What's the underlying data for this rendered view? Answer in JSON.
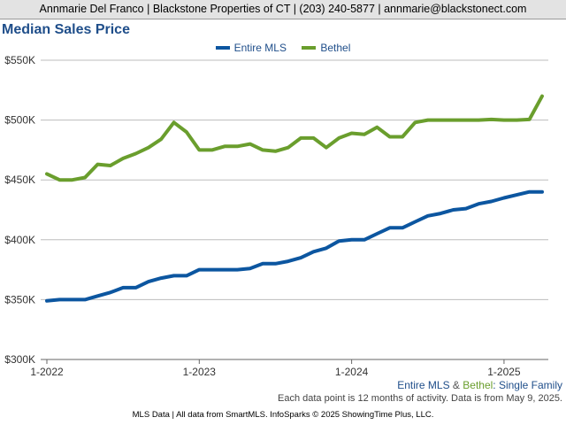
{
  "header": {
    "contact": "Annmarie Del Franco | Blackstone Properties of CT | (203) 240-5877 | annmarie@blackstonect.com"
  },
  "chart_data": {
    "type": "line",
    "title": "Median Sales Price",
    "xlabel": "",
    "ylabel": "",
    "ylim": [
      300000,
      550000
    ],
    "y_ticks": [
      300000,
      350000,
      400000,
      450000,
      500000,
      550000
    ],
    "y_tick_labels": [
      "$300K",
      "$350K",
      "$400K",
      "$450K",
      "$500K",
      "$550K"
    ],
    "x_ticks": [
      "2022-01",
      "2023-01",
      "2024-01",
      "2025-01"
    ],
    "x_tick_labels": [
      "1-2022",
      "1-2023",
      "1-2024",
      "1-2025"
    ],
    "x": [
      "2022-01",
      "2022-02",
      "2022-03",
      "2022-04",
      "2022-05",
      "2022-06",
      "2022-07",
      "2022-08",
      "2022-09",
      "2022-10",
      "2022-11",
      "2022-12",
      "2023-01",
      "2023-02",
      "2023-03",
      "2023-04",
      "2023-05",
      "2023-06",
      "2023-07",
      "2023-08",
      "2023-09",
      "2023-10",
      "2023-11",
      "2023-12",
      "2024-01",
      "2024-02",
      "2024-03",
      "2024-04",
      "2024-05",
      "2024-06",
      "2024-07",
      "2024-08",
      "2024-09",
      "2024-10",
      "2024-11",
      "2024-12",
      "2025-01",
      "2025-02",
      "2025-03",
      "2025-04"
    ],
    "grid": true,
    "legend_position": "top-center",
    "series": [
      {
        "name": "Entire MLS",
        "color": "#0c56a0",
        "values": [
          349000,
          350000,
          350000,
          350000,
          353000,
          356000,
          360000,
          360000,
          365000,
          368000,
          370000,
          370000,
          375000,
          375000,
          375000,
          375000,
          376000,
          380000,
          380000,
          382000,
          385000,
          390000,
          393000,
          399000,
          400000,
          400000,
          405000,
          410000,
          410000,
          415000,
          420000,
          422000,
          425000,
          426000,
          430000,
          432000,
          435000,
          437500,
          440000,
          440000
        ]
      },
      {
        "name": "Bethel",
        "color": "#6a9e2d",
        "values": [
          455000,
          450000,
          450000,
          452000,
          463000,
          462000,
          468000,
          472000,
          477000,
          484000,
          498000,
          490000,
          475000,
          475000,
          478000,
          478000,
          480000,
          475000,
          474000,
          477000,
          485000,
          485000,
          477000,
          485000,
          489000,
          488000,
          494000,
          486000,
          486000,
          498000,
          500000,
          500000,
          500000,
          500000,
          500000,
          500500,
          500000,
          500000,
          500500,
          520000
        ]
      }
    ]
  },
  "subtitle": {
    "series_a": "Entire MLS",
    "amp": " & ",
    "series_b": "Bethel",
    "suffix": ": Single Family"
  },
  "note": "Each data point is 12 months of activity. Data is from May 9, 2025.",
  "footer": "MLS Data | All data from SmartMLS. InfoSparks © 2025 ShowingTime Plus, LLC."
}
